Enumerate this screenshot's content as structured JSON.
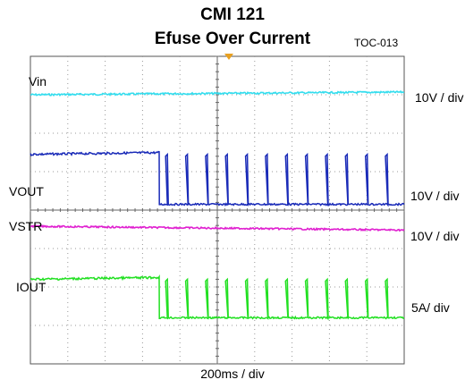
{
  "chart_data": {
    "type": "line",
    "title": "CMI  121",
    "subtitle": "Efuse Over Current",
    "figure_id": "TOC-013",
    "xlabel": "200ms / div",
    "grid": true,
    "time_divisions": 10,
    "vertical_divisions": 8,
    "series": [
      {
        "name": "Vin",
        "scale": "10V / div",
        "color": "#33ddee",
        "description": "flat, slowly rising slightly",
        "level_div_from_top": [
          1.08,
          1.0
        ]
      },
      {
        "name": "VOUT",
        "scale": "10V / div",
        "color": "#1a2bb8",
        "description": "steady ~1.3 div until fault at ~3.5 div, then 0 with periodic retry spikes",
        "fault_time_div": 3.45,
        "pre_fault_div": 1.3,
        "spike_count": 12,
        "spike_height_div": 1.3
      },
      {
        "name": "VSTR",
        "scale": "10V / div",
        "color": "#e020d0",
        "description": "flat, slightly decreasing"
      },
      {
        "name": "IOUT",
        "scale": "5A/ div",
        "color": "#22e022",
        "description": "steady ~1.0 div until fault at ~3.5 div, then 0 with periodic retry spikes",
        "fault_time_div": 3.45,
        "pre_fault_div": 1.0,
        "spike_count": 12,
        "spike_height_div": 1.0
      }
    ]
  }
}
